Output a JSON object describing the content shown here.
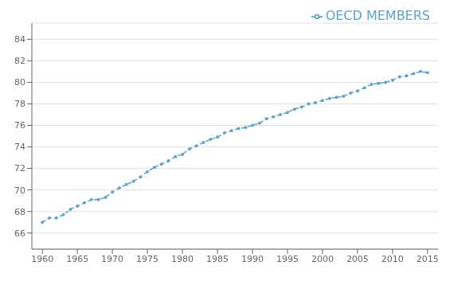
{
  "chart_data": {
    "type": "line",
    "x": [
      1960,
      1961,
      1962,
      1963,
      1964,
      1965,
      1966,
      1967,
      1968,
      1969,
      1970,
      1971,
      1972,
      1973,
      1974,
      1975,
      1976,
      1977,
      1978,
      1979,
      1980,
      1981,
      1982,
      1983,
      1984,
      1985,
      1986,
      1987,
      1988,
      1989,
      1990,
      1991,
      1992,
      1993,
      1994,
      1995,
      1996,
      1997,
      1998,
      1999,
      2000,
      2001,
      2002,
      2003,
      2004,
      2005,
      2006,
      2007,
      2008,
      2009,
      2010,
      2011,
      2012,
      2013,
      2014,
      2015
    ],
    "series": [
      {
        "name": "OECD MEMBERS",
        "color": "#5ba3c9",
        "marker": "dot",
        "line_style": "dashed",
        "values": [
          67.0,
          67.4,
          67.4,
          67.7,
          68.2,
          68.5,
          68.8,
          69.1,
          69.1,
          69.3,
          69.8,
          70.2,
          70.5,
          70.8,
          71.2,
          71.7,
          72.1,
          72.4,
          72.7,
          73.1,
          73.3,
          73.8,
          74.1,
          74.4,
          74.7,
          74.9,
          75.3,
          75.5,
          75.7,
          75.8,
          76.0,
          76.2,
          76.6,
          76.8,
          77.0,
          77.2,
          77.5,
          77.7,
          78.0,
          78.1,
          78.3,
          78.5,
          78.6,
          78.7,
          79.0,
          79.2,
          79.5,
          79.8,
          79.9,
          80.0,
          80.2,
          80.5,
          80.6,
          80.8,
          81.0,
          80.9
        ]
      }
    ],
    "xlim": [
      1958.5,
      2016.5
    ],
    "xticks": [
      1960,
      1965,
      1970,
      1975,
      1980,
      1985,
      1990,
      1995,
      2000,
      2005,
      2010,
      2015
    ],
    "ylim": [
      64.5,
      85.5
    ],
    "yticks": [
      66,
      68,
      70,
      72,
      74,
      76,
      78,
      80,
      82,
      84
    ],
    "grid": true,
    "legend": "upper right"
  }
}
